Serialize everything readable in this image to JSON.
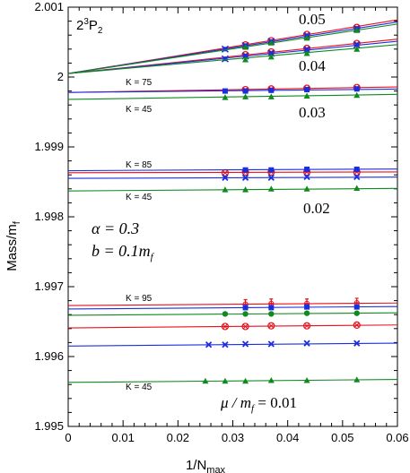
{
  "chart_data": {
    "type": "scatter",
    "state_label": {
      "base": "2",
      "sup": "3",
      "rest": "P",
      "sub": "2"
    },
    "xlabel": {
      "main": "1/N",
      "sub": "max"
    },
    "ylabel": {
      "main": "Mass/m",
      "sub": "f"
    },
    "xlim": [
      0,
      0.06
    ],
    "ylim": [
      1.995,
      2.001
    ],
    "xticks": [
      "0",
      "0.01",
      "0.02",
      "0.03",
      "0.04",
      "0.05",
      "0.06"
    ],
    "yticks": [
      "1.995",
      "1.996",
      "1.997",
      "1.998",
      "1.999",
      "2",
      "2.001"
    ],
    "params": {
      "alpha": "α = 0.3",
      "b": "b = 0.1m",
      "b_sub": "f"
    },
    "colors": {
      "red": "#e8101a",
      "blue": "#1a2ee0",
      "green": "#0f8a1f"
    },
    "groups": [
      {
        "label": "0.05",
        "series": [
          {
            "color": "red",
            "marker": "circle-open-x",
            "intercept": 2.00005,
            "slope": 0.0128,
            "x": [
              0.0323,
              0.037,
              0.0435,
              0.0526
            ],
            "y": [
              2.00046,
              2.00052,
              2.00061,
              2.00071
            ]
          },
          {
            "color": "blue",
            "marker": "x-square",
            "intercept": 2.00005,
            "slope": 0.0123,
            "x": [
              0.0286,
              0.0323,
              0.037,
              0.0435,
              0.0526
            ],
            "y": [
              2.0004,
              2.00045,
              2.00051,
              2.00059,
              2.00069
            ]
          },
          {
            "color": "green",
            "marker": "triangle",
            "intercept": 2.00005,
            "slope": 0.0118,
            "x": [
              0.0323,
              0.037,
              0.0435,
              0.0526
            ],
            "y": [
              2.00043,
              2.00049,
              2.00056,
              2.00067
            ]
          }
        ]
      },
      {
        "label": "0.04",
        "series": [
          {
            "color": "red",
            "marker": "circle-open-x",
            "intercept": 2.00005,
            "slope": 0.0082,
            "x": [
              0.0323,
              0.037,
              0.0435,
              0.0526
            ],
            "y": [
              2.00032,
              2.00036,
              2.00041,
              2.00048
            ]
          },
          {
            "color": "blue",
            "marker": "x-square",
            "intercept": 2.00005,
            "slope": 0.0077,
            "x": [
              0.0286,
              0.0323,
              0.037,
              0.0435,
              0.0526
            ],
            "y": [
              2.00026,
              2.0003,
              2.00034,
              2.00039,
              2.00046
            ]
          },
          {
            "color": "green",
            "marker": "triangle",
            "intercept": 2.00005,
            "slope": 0.0069,
            "x": [
              0.0323,
              0.037,
              0.0435,
              0.0526
            ],
            "y": [
              2.00025,
              2.00029,
              2.00034,
              2.0004
            ]
          }
        ]
      },
      {
        "label": "0.03",
        "k_top": "K = 75",
        "k_bottom": "K = 45",
        "series": [
          {
            "color": "red",
            "marker": "circle-open-x",
            "intercept": 1.99978,
            "slope": 0.0013,
            "x": [
              0.0323,
              0.037,
              0.0435,
              0.0526
            ],
            "y": [
              1.99982,
              1.99983,
              1.99984,
              1.99985
            ]
          },
          {
            "color": "blue",
            "marker": "square",
            "intercept": 1.99978,
            "slope": 0.0008,
            "x": [
              0.0286,
              0.0323,
              0.037,
              0.0435,
              0.0526
            ],
            "y": [
              1.9998,
              1.9998,
              1.99981,
              1.99982,
              1.99983
            ]
          },
          {
            "color": "green",
            "marker": "triangle",
            "intercept": 1.99968,
            "slope": 0.0012,
            "x": [
              0.0286,
              0.0323,
              0.037,
              0.0435,
              0.0526
            ],
            "y": [
              1.99971,
              1.99972,
              1.99972,
              1.99973,
              1.99974
            ]
          }
        ]
      },
      {
        "label": "0.02",
        "k_top": "K = 85",
        "k_bottom": "K = 45",
        "series": [
          {
            "color": "red",
            "marker": "circle-open-x",
            "intercept": 1.99863,
            "slope": 0.0002,
            "x": [
              0.0286,
              0.0323,
              0.037,
              0.0435,
              0.0526
            ],
            "y": [
              1.99863,
              1.99864,
              1.99864,
              1.99864,
              1.99864
            ]
          },
          {
            "color": "blue",
            "marker": "square",
            "intercept": 1.99866,
            "slope": 0.0004,
            "x": [
              0.0323,
              0.037,
              0.0435,
              0.0526
            ],
            "y": [
              1.99867,
              1.99867,
              1.99868,
              1.99868
            ]
          },
          {
            "color": "blue",
            "marker": "x",
            "intercept": 1.99855,
            "slope": 0.0003,
            "x": [
              0.0286,
              0.0323,
              0.037,
              0.0435,
              0.0526
            ],
            "y": [
              1.99856,
              1.99856,
              1.99856,
              1.99857,
              1.99857
            ]
          },
          {
            "color": "green",
            "marker": "triangle",
            "intercept": 1.99837,
            "slope": 0.0006,
            "x": [
              0.0286,
              0.0323,
              0.037,
              0.0435,
              0.0526
            ],
            "y": [
              1.99839,
              1.99839,
              1.9984,
              1.9984,
              1.99841
            ]
          }
        ]
      },
      {
        "label": "μ / m = 0.01",
        "label_sub": "f",
        "k_top": "K = 95",
        "k_bottom": "K = 45",
        "series": [
          {
            "color": "red",
            "marker": "plus-error",
            "intercept": 1.99673,
            "slope": 0.0006,
            "x": [
              0.0323,
              0.037,
              0.0435,
              0.0526
            ],
            "y": [
              1.99675,
              1.99676,
              1.99676,
              1.99677
            ]
          },
          {
            "color": "blue",
            "marker": "square",
            "intercept": 1.99668,
            "slope": 0.0006,
            "x": [
              0.0323,
              0.037,
              0.0435,
              0.0526
            ],
            "y": [
              1.9967,
              1.9967,
              1.99671,
              1.99671
            ]
          },
          {
            "color": "green",
            "marker": "circle",
            "intercept": 1.99659,
            "slope": 0.0006,
            "x": [
              0.0286,
              0.0323,
              0.037,
              0.0435,
              0.0526
            ],
            "y": [
              1.99661,
              1.99661,
              1.99661,
              1.99662,
              1.99662
            ]
          },
          {
            "color": "red",
            "marker": "circle-open-x",
            "intercept": 1.99641,
            "slope": 0.0007,
            "x": [
              0.0286,
              0.0323,
              0.037,
              0.0435,
              0.0526
            ],
            "y": [
              1.99643,
              1.99643,
              1.99644,
              1.99644,
              1.99645
            ]
          },
          {
            "color": "blue",
            "marker": "x",
            "intercept": 1.99615,
            "slope": 0.0007,
            "x": [
              0.0256,
              0.0286,
              0.0323,
              0.037,
              0.0435,
              0.0526
            ],
            "y": [
              1.99617,
              1.99617,
              1.99618,
              1.99618,
              1.99619,
              1.99619
            ]
          },
          {
            "color": "green",
            "marker": "triangle",
            "intercept": 1.99563,
            "slope": 0.0007,
            "x": [
              0.025,
              0.0286,
              0.0323,
              0.037,
              0.0435,
              0.0526
            ],
            "y": [
              1.99565,
              1.99565,
              1.99565,
              1.99566,
              1.99566,
              1.99567
            ]
          }
        ]
      }
    ]
  }
}
